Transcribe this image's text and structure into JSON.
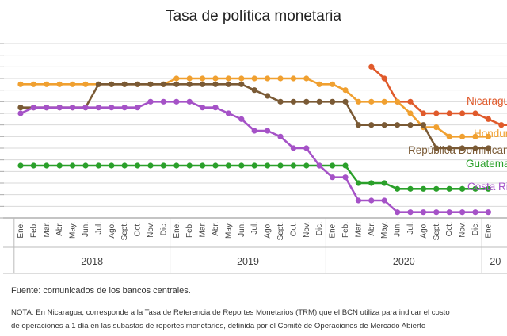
{
  "title": "Tasa de política monetaria",
  "source": "Fuente: comunicados de los bancos centrales.",
  "note_line1": "NOTA: En Nicaragua, corresponde a la Tasa de Referencia de Reportes Monetarios (TRM) que el BCN utiliza para indicar el costo",
  "note_line2": "de operaciones a 1 día en las subastas de reportes monetarios, definida por el Comité de Operaciones de Mercado Abierto",
  "chart_data": {
    "type": "line",
    "title": "Tasa de política monetaria",
    "month_labels": [
      "Ene.",
      "Feb.",
      "Mar.",
      "Abr.",
      "May.",
      "Jun.",
      "Jul.",
      "Ago.",
      "Sept.",
      "Oct.",
      "Nov.",
      "Dic.",
      "Ene.",
      "Feb.",
      "Mar.",
      "Abr.",
      "May.",
      "Jun.",
      "Jul.",
      "Ago.",
      "Sept.",
      "Oct.",
      "Nov.",
      "Dic.",
      "Ene.",
      "Feb.",
      "Mar.",
      "Abr.",
      "May.",
      "Jun.",
      "Jul.",
      "Ago.",
      "Sept.",
      "Oct.",
      "Nov.",
      "Dic.",
      "Ene."
    ],
    "year_labels": [
      "2018",
      "2019",
      "2020",
      "20"
    ],
    "ylim": [
      0.5,
      8
    ],
    "grid": true,
    "series": [
      {
        "name": "Nicaragua",
        "color": "#e05a2b",
        "start": 27,
        "values": [
          7.0,
          6.5,
          5.5,
          5.5,
          5.0,
          5.0,
          5.0,
          5.0,
          5.0,
          4.75,
          4.5,
          4.5
        ]
      },
      {
        "name": "Honduras",
        "color": "#f0a030",
        "start": 0,
        "values": [
          6.25,
          6.25,
          6.25,
          6.25,
          6.25,
          6.25,
          6.25,
          6.25,
          6.25,
          6.25,
          6.25,
          6.25,
          6.5,
          6.5,
          6.5,
          6.5,
          6.5,
          6.5,
          6.5,
          6.5,
          6.5,
          6.5,
          6.5,
          6.25,
          6.25,
          6.0,
          5.5,
          5.5,
          5.5,
          5.5,
          5.0,
          4.4,
          4.4,
          4.0,
          4.0,
          4.0,
          4.0
        ]
      },
      {
        "name": "República Dominicana",
        "color": "#7a5a35",
        "start": 0,
        "values": [
          5.25,
          5.25,
          5.25,
          5.25,
          5.25,
          5.25,
          6.25,
          6.25,
          6.25,
          6.25,
          6.25,
          6.25,
          6.25,
          6.25,
          6.25,
          6.25,
          6.25,
          6.25,
          6.0,
          5.75,
          5.5,
          5.5,
          5.5,
          5.5,
          5.5,
          5.5,
          4.5,
          4.5,
          4.5,
          4.5,
          4.5,
          4.5,
          3.5,
          3.5,
          3.5,
          3.5,
          3.5
        ]
      },
      {
        "name": "Guatemala",
        "color": "#2aa02a",
        "start": 0,
        "values": [
          2.75,
          2.75,
          2.75,
          2.75,
          2.75,
          2.75,
          2.75,
          2.75,
          2.75,
          2.75,
          2.75,
          2.75,
          2.75,
          2.75,
          2.75,
          2.75,
          2.75,
          2.75,
          2.75,
          2.75,
          2.75,
          2.75,
          2.75,
          2.75,
          2.75,
          2.75,
          2.0,
          2.0,
          2.0,
          1.75,
          1.75,
          1.75,
          1.75,
          1.75,
          1.75,
          1.75,
          1.75
        ]
      },
      {
        "name": "Costa Rica",
        "color": "#a552c7",
        "start": 0,
        "values": [
          5.0,
          5.25,
          5.25,
          5.25,
          5.25,
          5.25,
          5.25,
          5.25,
          5.25,
          5.25,
          5.5,
          5.5,
          5.5,
          5.5,
          5.25,
          5.25,
          5.0,
          4.75,
          4.25,
          4.25,
          4.0,
          3.5,
          3.5,
          2.75,
          2.25,
          2.25,
          1.25,
          1.25,
          1.25,
          0.75,
          0.75,
          0.75,
          0.75,
          0.75,
          0.75,
          0.75,
          0.75
        ]
      }
    ]
  }
}
